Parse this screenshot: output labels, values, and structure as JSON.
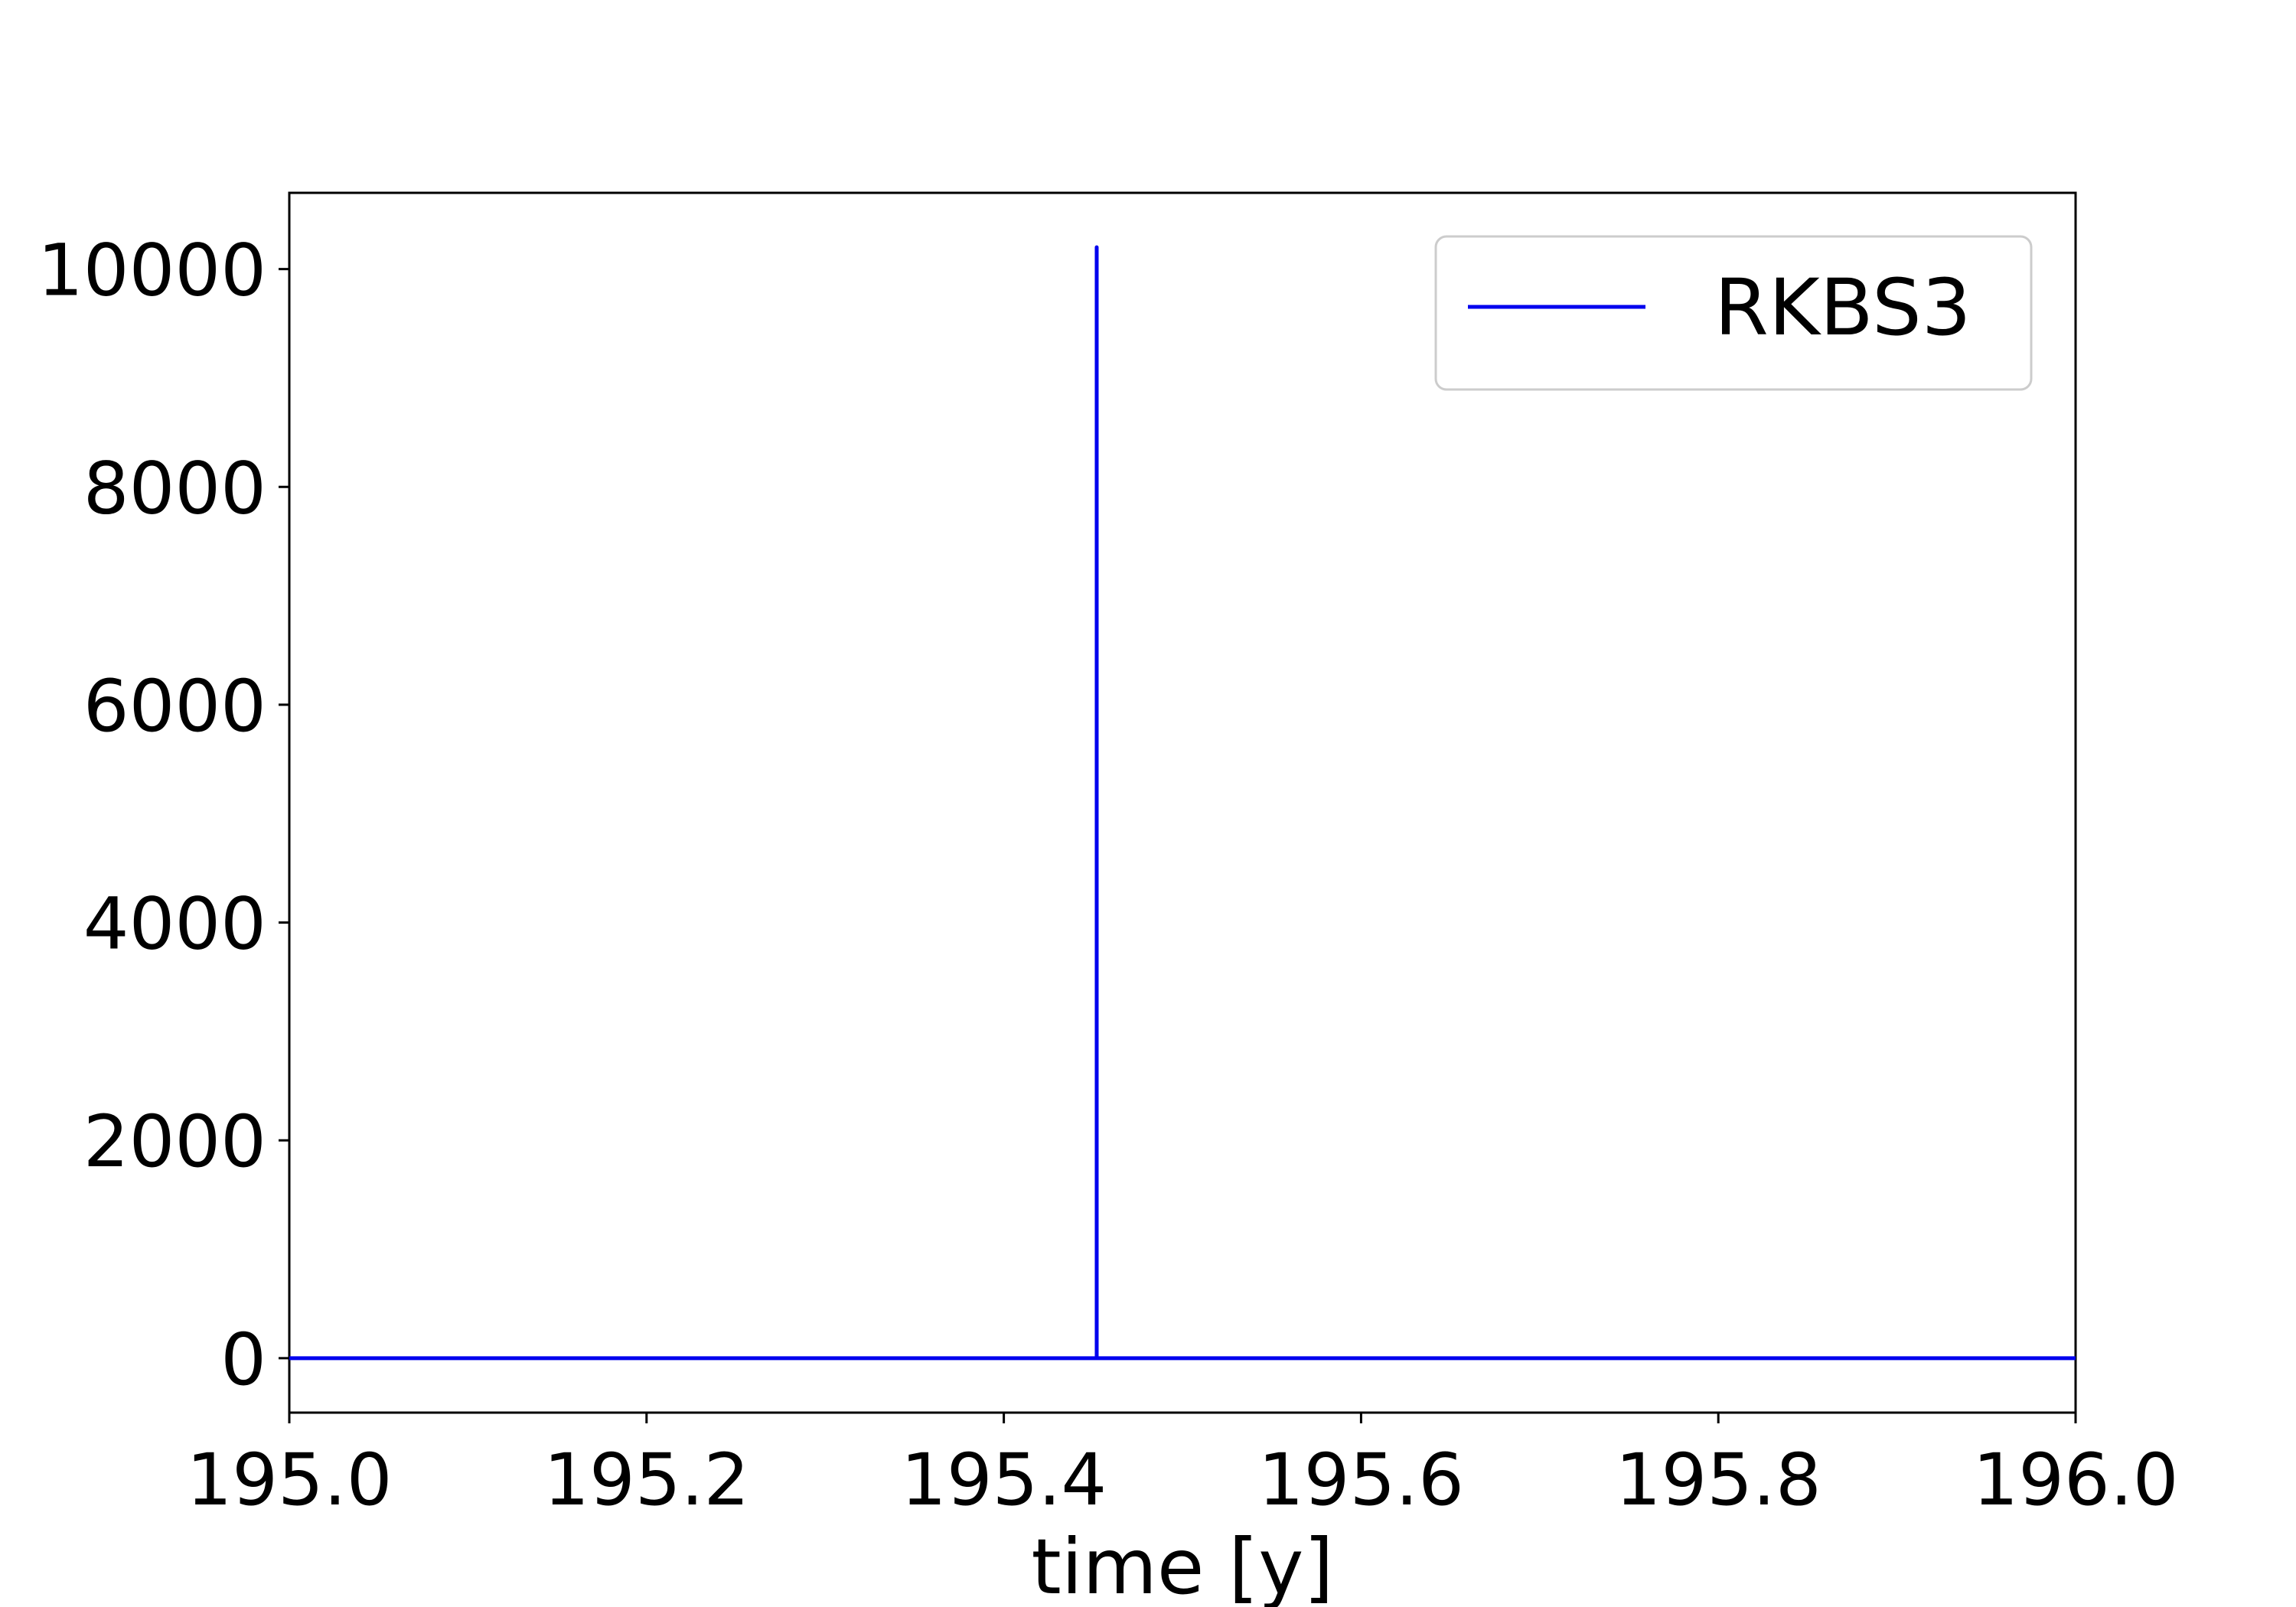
{
  "chart_data": {
    "type": "line",
    "title": "",
    "xlabel": "time [y]",
    "ylabel": "",
    "xlim": [
      195.0,
      196.0
    ],
    "ylim": [
      -500,
      10700
    ],
    "x_ticks": [
      195.0,
      195.2,
      195.4,
      195.6,
      195.8,
      196.0
    ],
    "x_tick_labels": [
      "195.0",
      "195.2",
      "195.4",
      "195.6",
      "195.8",
      "196.0"
    ],
    "y_ticks": [
      0,
      2000,
      4000,
      6000,
      8000,
      10000
    ],
    "y_tick_labels": [
      "0",
      "2000",
      "4000",
      "6000",
      "8000",
      "10000"
    ],
    "grid": false,
    "legend_position": "top-right",
    "series": [
      {
        "name": "RKBS3",
        "color": "#0000ee",
        "x": [
          195.0,
          195.452,
          195.452,
          195.452,
          196.0
        ],
        "y": [
          0,
          0,
          10200,
          0,
          0
        ]
      }
    ]
  }
}
